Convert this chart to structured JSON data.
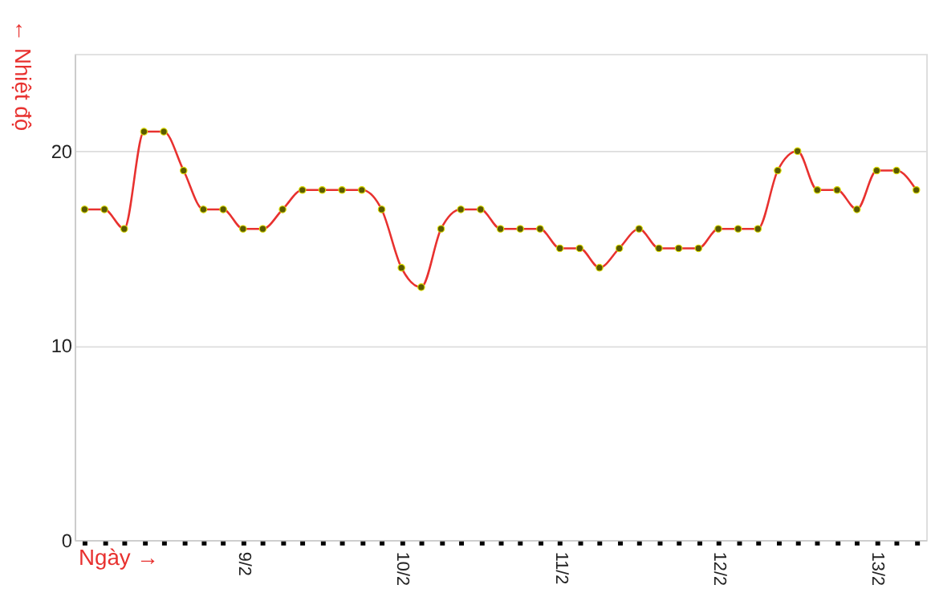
{
  "chart_data": {
    "type": "line",
    "xlabel": "Ngày →",
    "ylabel": "← Nhiệt độ",
    "categories": [
      null,
      null,
      null,
      null,
      null,
      null,
      null,
      null,
      "9/2",
      null,
      null,
      null,
      null,
      null,
      null,
      null,
      "10/2",
      null,
      null,
      null,
      null,
      null,
      null,
      null,
      "11/2",
      null,
      null,
      null,
      null,
      null,
      null,
      null,
      "12/2",
      null,
      null,
      null,
      null,
      null,
      null,
      null,
      "13/2",
      null,
      null
    ],
    "series": [
      {
        "color": "#e8312f",
        "values": [
          17,
          17,
          16,
          21,
          21,
          19,
          17,
          17,
          16,
          16,
          17,
          18,
          18,
          18,
          18,
          17,
          14,
          13,
          16,
          17,
          17,
          16,
          16,
          16,
          15,
          15,
          14,
          15,
          16,
          15,
          15,
          15,
          16,
          16,
          16,
          19,
          20,
          18,
          18,
          17,
          19,
          19,
          18
        ]
      }
    ],
    "ylim": [
      0,
      25
    ],
    "yticks": [
      0,
      10,
      20
    ],
    "grid": "y",
    "marker": "circle",
    "line_style": "solid"
  }
}
